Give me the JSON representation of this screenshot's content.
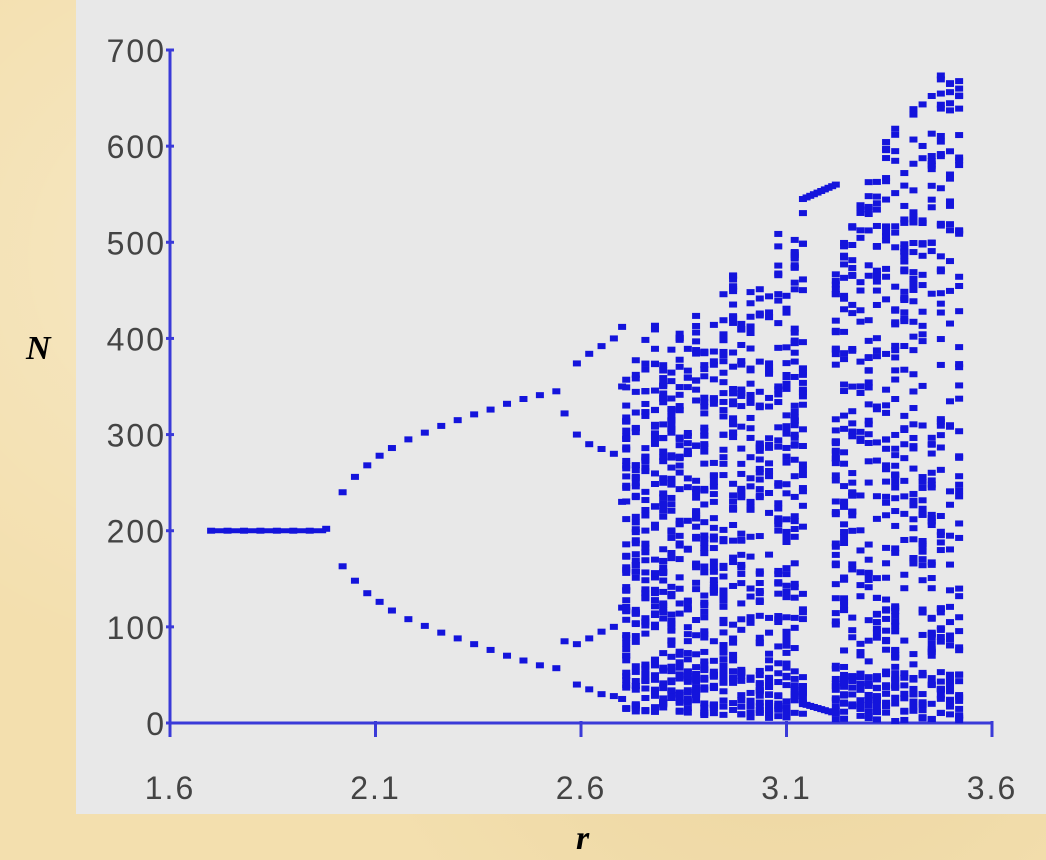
{
  "chart_data": {
    "type": "scatter",
    "title": "",
    "xlabel": "r",
    "ylabel": "N",
    "xlim": [
      1.6,
      3.6
    ],
    "ylim": [
      0,
      700
    ],
    "x_ticks": [
      "1.6",
      "2.1",
      "2.6",
      "3.1",
      "3.6"
    ],
    "y_ticks": [
      "700",
      "600",
      "500",
      "400",
      "300",
      "200",
      "100",
      "0"
    ],
    "grid": false,
    "legend": "none",
    "colors": {
      "points": "#1414dc",
      "axes": "#3a3ad8",
      "background": "#e8e8e8"
    },
    "series": [
      {
        "description": "bifurcation diagram",
        "points": [
          [
            1.7,
            200
          ],
          [
            1.74,
            200
          ],
          [
            1.78,
            200
          ],
          [
            1.82,
            200
          ],
          [
            1.86,
            200
          ],
          [
            1.9,
            200
          ],
          [
            1.94,
            200
          ],
          [
            1.98,
            202
          ],
          [
            2.02,
            240
          ],
          [
            2.02,
            163
          ],
          [
            2.05,
            256
          ],
          [
            2.05,
            148
          ],
          [
            2.08,
            268
          ],
          [
            2.08,
            135
          ],
          [
            2.11,
            278
          ],
          [
            2.11,
            126
          ],
          [
            2.14,
            286
          ],
          [
            2.14,
            117
          ],
          [
            2.18,
            295
          ],
          [
            2.18,
            108
          ],
          [
            2.22,
            302
          ],
          [
            2.22,
            101
          ],
          [
            2.26,
            309
          ],
          [
            2.26,
            94
          ],
          [
            2.3,
            315
          ],
          [
            2.3,
            88
          ],
          [
            2.34,
            321
          ],
          [
            2.34,
            82
          ],
          [
            2.38,
            326
          ],
          [
            2.38,
            76
          ],
          [
            2.42,
            332
          ],
          [
            2.42,
            70
          ],
          [
            2.46,
            337
          ],
          [
            2.46,
            65
          ],
          [
            2.5,
            341
          ],
          [
            2.5,
            60
          ],
          [
            2.54,
            345
          ],
          [
            2.54,
            57
          ],
          [
            2.56,
            322
          ],
          [
            2.56,
            85
          ],
          [
            2.59,
            374
          ],
          [
            2.59,
            300
          ],
          [
            2.59,
            82
          ],
          [
            2.59,
            40
          ],
          [
            2.62,
            384
          ],
          [
            2.62,
            290
          ],
          [
            2.62,
            88
          ],
          [
            2.62,
            35
          ],
          [
            2.65,
            392
          ],
          [
            2.65,
            285
          ],
          [
            2.65,
            95
          ],
          [
            2.65,
            30
          ],
          [
            2.68,
            400
          ],
          [
            2.68,
            280
          ],
          [
            2.68,
            100
          ],
          [
            2.68,
            28
          ],
          [
            2.7,
            412
          ],
          [
            2.7,
            350
          ],
          [
            2.7,
            230
          ],
          [
            2.7,
            120
          ],
          [
            2.7,
            25
          ]
        ],
        "chaotic_bands": [
          {
            "r_range": [
              2.71,
              2.78
            ],
            "n_range": [
              10,
              420
            ]
          },
          {
            "r_range": [
              2.8,
              2.88
            ],
            "n_range": [
              10,
              440
            ]
          },
          {
            "r_range": [
              2.9,
              2.97
            ],
            "n_range": [
              8,
              470
            ]
          },
          {
            "r_range": [
              2.99,
              3.08
            ],
            "n_range": [
              5,
              520
            ]
          },
          {
            "r_range": [
              3.1,
              3.14
            ],
            "n_range": [
              5,
              545
            ]
          },
          {
            "r_range": [
              3.22,
              3.3
            ],
            "n_range": [
              3,
              580
            ]
          },
          {
            "r_range": [
              3.32,
              3.52
            ],
            "n_range": [
              2,
              700
            ]
          }
        ],
        "window_curves": [
          {
            "r_range": [
              3.14,
              3.22
            ],
            "upper": [
              545,
              560
            ],
            "lower": [
              20,
              10
            ]
          }
        ]
      }
    ]
  }
}
